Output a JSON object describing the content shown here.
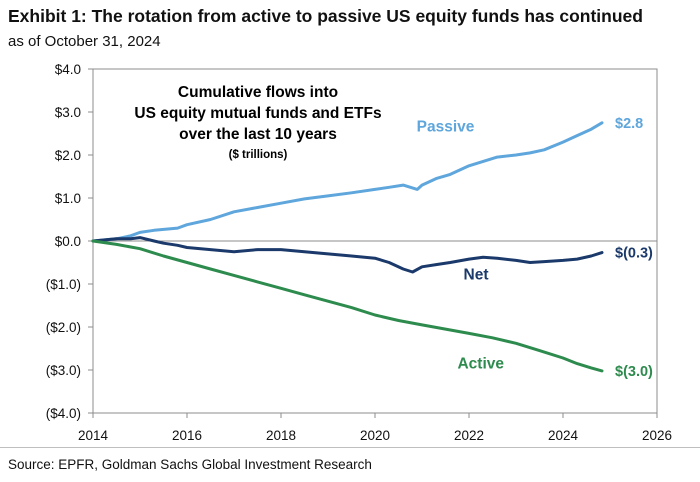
{
  "exhibit": {
    "title": "Exhibit 1: The rotation from active to passive US equity funds has continued",
    "subtitle": "as of October 31, 2024",
    "source": "Source: EPFR, Goldman Sachs Global Investment Research"
  },
  "chart_data": {
    "type": "line",
    "title_lines": [
      "Cumulative flows into",
      "US equity mutual funds and ETFs",
      "over the last 10 years"
    ],
    "units_note": "($ trillions)",
    "xlabel": "",
    "ylabel": "",
    "xlim": [
      2014,
      2026
    ],
    "ylim": [
      -4,
      4
    ],
    "x_ticks": [
      2014,
      2016,
      2018,
      2020,
      2022,
      2024,
      2026
    ],
    "x_tick_labels": [
      "2014",
      "2016",
      "2018",
      "2020",
      "2022",
      "2024",
      "2026"
    ],
    "y_ticks": [
      4,
      3,
      2,
      1,
      0,
      -1,
      -2,
      -3,
      -4
    ],
    "y_tick_labels": [
      "$4.0",
      "$3.0",
      "$2.0",
      "$1.0",
      "$0.0",
      "($1.0)",
      "($2.0)",
      "($3.0)",
      "($4.0)"
    ],
    "grid": false,
    "zero_line": true,
    "series": [
      {
        "name": "Passive",
        "color": "#5ea6dc",
        "end_label": "$2.8",
        "x": [
          2014.0,
          2014.5,
          2014.8,
          2015.0,
          2015.3,
          2015.8,
          2016.0,
          2016.5,
          2017.0,
          2017.5,
          2018.0,
          2018.5,
          2019.0,
          2019.5,
          2020.0,
          2020.3,
          2020.6,
          2020.9,
          2021.0,
          2021.3,
          2021.6,
          2022.0,
          2022.3,
          2022.6,
          2023.0,
          2023.3,
          2023.6,
          2024.0,
          2024.3,
          2024.6,
          2024.83
        ],
        "y": [
          0.0,
          0.05,
          0.12,
          0.2,
          0.25,
          0.3,
          0.38,
          0.5,
          0.68,
          0.78,
          0.88,
          0.98,
          1.05,
          1.12,
          1.2,
          1.25,
          1.3,
          1.2,
          1.3,
          1.45,
          1.55,
          1.75,
          1.85,
          1.95,
          2.0,
          2.05,
          2.12,
          2.3,
          2.45,
          2.6,
          2.75
        ]
      },
      {
        "name": "Net",
        "color": "#1b3a6b",
        "end_label": "$(0.3)",
        "x": [
          2014.0,
          2014.5,
          2014.8,
          2015.0,
          2015.3,
          2015.5,
          2015.8,
          2016.0,
          2016.5,
          2017.0,
          2017.5,
          2018.0,
          2018.5,
          2019.0,
          2019.5,
          2020.0,
          2020.3,
          2020.6,
          2020.8,
          2021.0,
          2021.3,
          2021.6,
          2022.0,
          2022.3,
          2022.6,
          2023.0,
          2023.3,
          2023.6,
          2024.0,
          2024.3,
          2024.6,
          2024.83
        ],
        "y": [
          0.0,
          0.05,
          0.05,
          0.08,
          0.0,
          -0.05,
          -0.1,
          -0.15,
          -0.2,
          -0.25,
          -0.2,
          -0.2,
          -0.25,
          -0.3,
          -0.35,
          -0.4,
          -0.5,
          -0.65,
          -0.72,
          -0.6,
          -0.55,
          -0.5,
          -0.42,
          -0.38,
          -0.4,
          -0.45,
          -0.5,
          -0.48,
          -0.45,
          -0.42,
          -0.35,
          -0.27
        ]
      },
      {
        "name": "Active",
        "color": "#2e8b4e",
        "end_label": "$(3.0)",
        "x": [
          2014.0,
          2014.5,
          2015.0,
          2015.5,
          2016.0,
          2016.5,
          2017.0,
          2017.5,
          2018.0,
          2018.5,
          2019.0,
          2019.5,
          2020.0,
          2020.5,
          2021.0,
          2021.5,
          2022.0,
          2022.5,
          2023.0,
          2023.5,
          2024.0,
          2024.3,
          2024.6,
          2024.83
        ],
        "y": [
          0.0,
          -0.08,
          -0.18,
          -0.35,
          -0.5,
          -0.65,
          -0.8,
          -0.95,
          -1.1,
          -1.25,
          -1.4,
          -1.55,
          -1.72,
          -1.85,
          -1.95,
          -2.05,
          -2.15,
          -2.25,
          -2.38,
          -2.55,
          -2.72,
          -2.85,
          -2.95,
          -3.02
        ]
      }
    ],
    "annotations": [
      {
        "text": "Passive",
        "series": "Passive",
        "x": 2021.5,
        "y": 2.55
      },
      {
        "text": "Net",
        "series": "Net",
        "x": 2022.15,
        "y": -0.9
      },
      {
        "text": "Active",
        "series": "Active",
        "x": 2022.25,
        "y": -2.97
      }
    ]
  }
}
